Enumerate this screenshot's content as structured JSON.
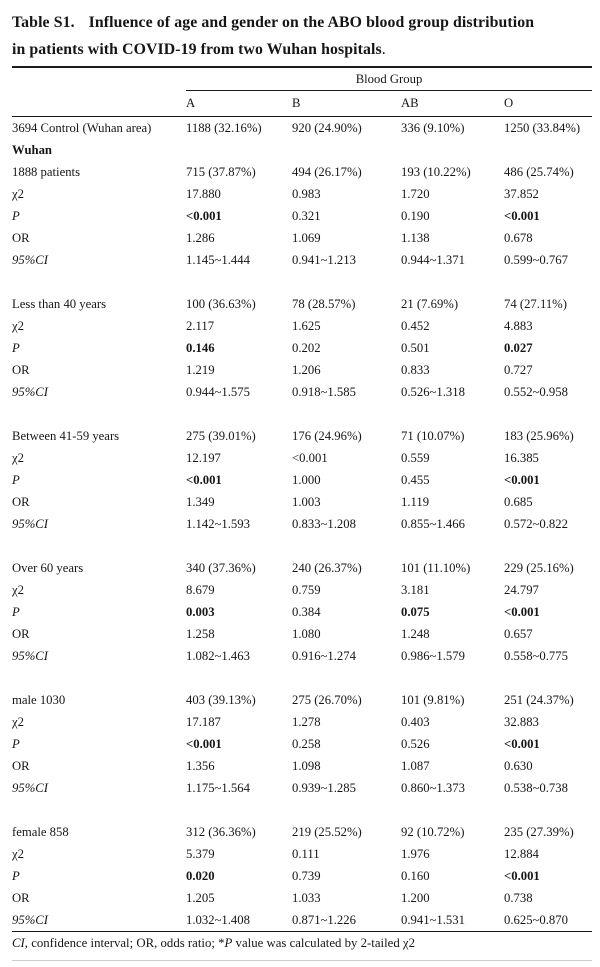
{
  "title": {
    "prefix": "Table S1.",
    "line1": "Influence of age and gender on the ABO blood group distribution",
    "line2": "in patients with COVID-19 from two Wuhan hospitals",
    "period": "."
  },
  "table": {
    "span_header": "Blood Group",
    "columns": [
      "A",
      "B",
      "AB",
      "O"
    ],
    "rows": [
      {
        "label": "3694 Control (Wuhan area)",
        "values": [
          "1188 (32.16%)",
          "920 (24.90%)",
          "336 (9.10%)",
          "1250 (33.84%)"
        ]
      },
      {
        "label": "Wuhan",
        "label_style": "bold",
        "values": [
          "",
          "",
          "",
          ""
        ]
      },
      {
        "label": "1888 patients",
        "values": [
          "715 (37.87%)",
          "494 (26.17%)",
          "193 (10.22%)",
          "486 (25.74%)"
        ]
      },
      {
        "label": "χ2",
        "values": [
          "17.880",
          "0.983",
          "1.720",
          "37.852"
        ]
      },
      {
        "label": "P",
        "label_style": "italic",
        "values": [
          "<0.001",
          "0.321",
          "0.190",
          "<0.001"
        ],
        "bold": [
          true,
          false,
          false,
          true
        ]
      },
      {
        "label": "OR",
        "values": [
          "1.286",
          "1.069",
          "1.138",
          "0.678"
        ]
      },
      {
        "label": "95%CI",
        "label_style": "italic",
        "values": [
          "1.145~1.444",
          "0.941~1.213",
          "0.944~1.371",
          "0.599~0.767"
        ]
      },
      {
        "blank": true
      },
      {
        "label": "Less than 40 years",
        "values": [
          "100 (36.63%)",
          "78 (28.57%)",
          "21 (7.69%)",
          "74 (27.11%)"
        ]
      },
      {
        "label": "χ2",
        "values": [
          "2.117",
          "1.625",
          "0.452",
          "4.883"
        ]
      },
      {
        "label": "P",
        "label_style": "italic",
        "values": [
          "0.146",
          "0.202",
          "0.501",
          "0.027"
        ],
        "bold": [
          true,
          false,
          false,
          true
        ]
      },
      {
        "label": "OR",
        "values": [
          "1.219",
          "1.206",
          "0.833",
          "0.727"
        ]
      },
      {
        "label": "95%CI",
        "label_style": "italic",
        "values": [
          "0.944~1.575",
          "0.918~1.585",
          "0.526~1.318",
          "0.552~0.958"
        ]
      },
      {
        "blank": true
      },
      {
        "label": "Between 41-59 years",
        "values": [
          "275 (39.01%)",
          "176 (24.96%)",
          "71 (10.07%)",
          "183 (25.96%)"
        ]
      },
      {
        "label": "χ2",
        "values": [
          "12.197",
          "<0.001",
          "0.559",
          "16.385"
        ]
      },
      {
        "label": "P",
        "label_style": "italic",
        "values": [
          "<0.001",
          "1.000",
          "0.455",
          "<0.001"
        ],
        "bold": [
          true,
          false,
          false,
          true
        ]
      },
      {
        "label": "OR",
        "values": [
          "1.349",
          "1.003",
          "1.119",
          "0.685"
        ]
      },
      {
        "label": "95%CI",
        "label_style": "italic",
        "values": [
          "1.142~1.593",
          "0.833~1.208",
          "0.855~1.466",
          "0.572~0.822"
        ]
      },
      {
        "blank": true
      },
      {
        "label": "Over 60 years",
        "values": [
          "340 (37.36%)",
          "240 (26.37%)",
          "101 (11.10%)",
          "229 (25.16%)"
        ]
      },
      {
        "label": "χ2",
        "values": [
          "8.679",
          "0.759",
          "3.181",
          "24.797"
        ]
      },
      {
        "label": "P",
        "label_style": "italic",
        "values": [
          "0.003",
          "0.384",
          "0.075",
          "<0.001"
        ],
        "bold": [
          true,
          false,
          true,
          true
        ]
      },
      {
        "label": "OR",
        "values": [
          "1.258",
          "1.080",
          "1.248",
          "0.657"
        ]
      },
      {
        "label": "95%CI",
        "label_style": "italic",
        "values": [
          "1.082~1.463",
          "0.916~1.274",
          "0.986~1.579",
          "0.558~0.775"
        ]
      },
      {
        "blank": true
      },
      {
        "label": "male 1030",
        "values": [
          "403 (39.13%)",
          "275 (26.70%)",
          "101 (9.81%)",
          "251 (24.37%)"
        ]
      },
      {
        "label": "χ2",
        "values": [
          "17.187",
          "1.278",
          "0.403",
          "32.883"
        ]
      },
      {
        "label": "P",
        "label_style": "italic",
        "values": [
          "<0.001",
          "0.258",
          "0.526",
          "<0.001"
        ],
        "bold": [
          true,
          false,
          false,
          true
        ]
      },
      {
        "label": "OR",
        "values": [
          "1.356",
          "1.098",
          "1.087",
          "0.630"
        ]
      },
      {
        "label": "95%CI",
        "label_style": "italic",
        "values": [
          "1.175~1.564",
          "0.939~1.285",
          "0.860~1.373",
          "0.538~0.738"
        ]
      },
      {
        "blank": true
      },
      {
        "label": "female 858",
        "values": [
          "312 (36.36%)",
          "219 (25.52%)",
          "92 (10.72%)",
          "235 (27.39%)"
        ]
      },
      {
        "label": "χ2",
        "values": [
          "5.379",
          "0.111",
          "1.976",
          "12.884"
        ]
      },
      {
        "label": "P",
        "label_style": "italic",
        "values": [
          "0.020",
          "0.739",
          "0.160",
          "<0.001"
        ],
        "bold": [
          true,
          false,
          false,
          true
        ]
      },
      {
        "label": "OR",
        "values": [
          "1.205",
          "1.033",
          "1.200",
          "0.738"
        ]
      },
      {
        "label": "95%CI",
        "label_style": "italic",
        "values": [
          "1.032~1.408",
          "0.871~1.226",
          "0.941~1.531",
          "0.625~0.870"
        ]
      }
    ]
  },
  "footnote": {
    "segments": [
      {
        "text": "CI",
        "italic": true
      },
      {
        "text": ", confidence interval; OR, odds ratio; *",
        "italic": false
      },
      {
        "text": "P",
        "italic": true
      },
      {
        "text": " value was calculated by 2-tailed χ2",
        "italic": false
      }
    ]
  }
}
